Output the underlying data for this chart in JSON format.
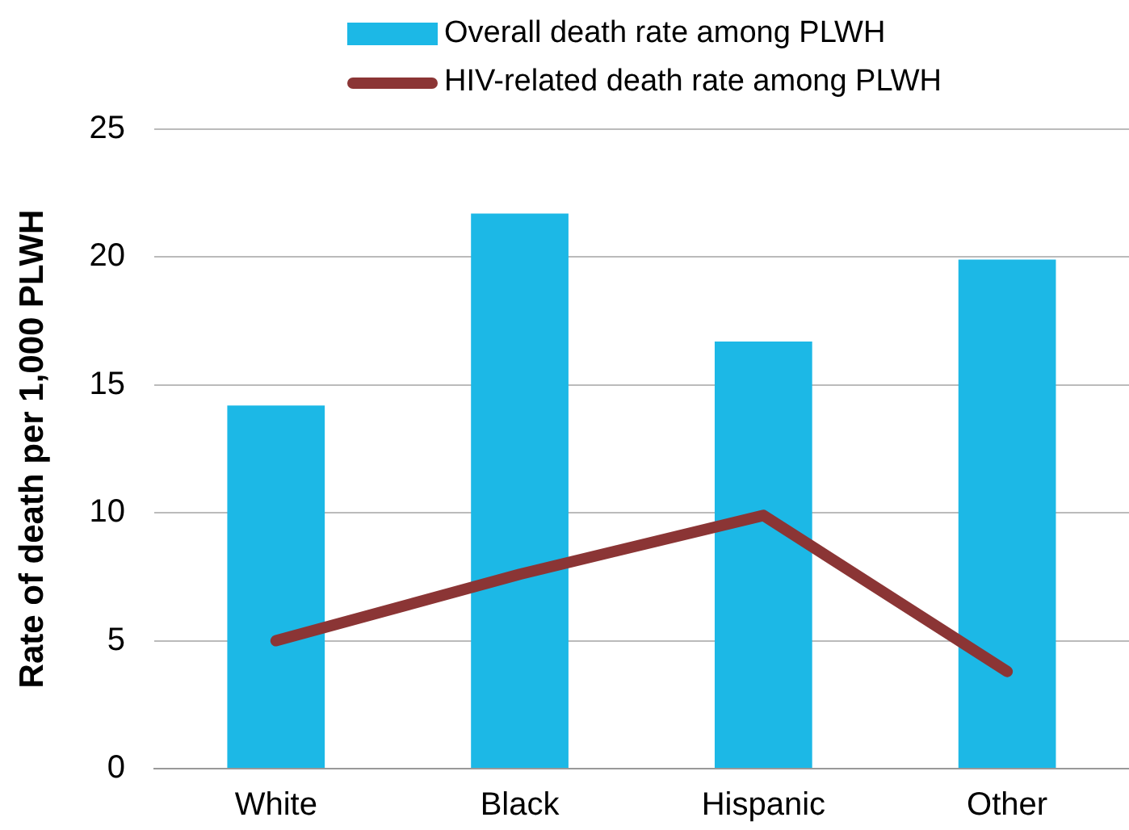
{
  "chart_data": {
    "type": "bar",
    "ylabel": "Rate of death per 1,000 PLWH",
    "categories": [
      "White",
      "Black",
      "Hispanic",
      "Other"
    ],
    "series": [
      {
        "name": "Overall death rate among PLWH",
        "color": "#1cb8e6",
        "values": [
          14.2,
          21.7,
          16.7,
          19.9
        ]
      },
      {
        "name": "HIV-related death rate among PLWH",
        "type": "line",
        "color": "#8b3535",
        "values": [
          5.0,
          7.6,
          9.9,
          3.8
        ]
      }
    ],
    "ylim": [
      0,
      25
    ],
    "yticks": [
      0,
      5,
      10,
      15,
      20,
      25
    ],
    "grid": "y",
    "legend": "top",
    "marker": "none"
  }
}
